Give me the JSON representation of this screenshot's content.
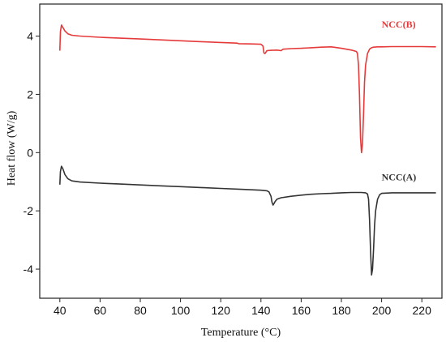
{
  "chart_data": {
    "type": "line",
    "title": "",
    "xlabel": "Temperature (°C)",
    "ylabel": "Heat flow (W/g)",
    "xlim": [
      30,
      230
    ],
    "ylim": [
      -5,
      5.1
    ],
    "xticks": [
      "40",
      "60",
      "80",
      "100",
      "120",
      "140",
      "160",
      "180",
      "200",
      "220"
    ],
    "yticks": [
      "4",
      "2",
      "0",
      "-2",
      "-4"
    ],
    "grid": false,
    "legend": "labels placed beside each curve",
    "series": [
      {
        "name": "NCC(B)",
        "color": "#e63a3a",
        "label_at": [
          200,
          4.3
        ],
        "x": [
          40,
          40.3,
          40.8,
          41.5,
          42.5,
          44,
          46,
          50,
          60,
          70,
          80,
          90,
          100,
          110,
          120,
          128,
          129,
          135,
          140,
          141,
          141.5,
          142,
          142.5,
          143,
          145,
          148,
          150,
          151,
          155,
          160,
          165,
          170,
          175,
          180,
          185,
          186,
          187,
          187.5,
          188,
          188.5,
          189,
          189.5,
          190,
          190.5,
          191,
          191.5,
          192,
          193,
          194,
          195,
          196,
          198,
          200,
          205,
          210,
          220,
          227
        ],
        "y": [
          3.5,
          4.15,
          4.38,
          4.3,
          4.18,
          4.08,
          4.03,
          4.0,
          3.96,
          3.93,
          3.9,
          3.87,
          3.84,
          3.81,
          3.78,
          3.76,
          3.74,
          3.73,
          3.72,
          3.66,
          3.42,
          3.4,
          3.45,
          3.5,
          3.51,
          3.52,
          3.5,
          3.55,
          3.57,
          3.58,
          3.6,
          3.62,
          3.63,
          3.58,
          3.52,
          3.5,
          3.48,
          3.47,
          3.4,
          3.0,
          2.0,
          0.5,
          0.0,
          0.3,
          1.3,
          2.4,
          3.0,
          3.4,
          3.55,
          3.6,
          3.62,
          3.63,
          3.63,
          3.64,
          3.64,
          3.64,
          3.63
        ]
      },
      {
        "name": "NCC(A)",
        "color": "#333333",
        "label_at": [
          200,
          -0.95
        ],
        "x": [
          40,
          40.3,
          40.8,
          41.5,
          42.5,
          44,
          46,
          50,
          60,
          70,
          80,
          90,
          100,
          110,
          120,
          130,
          140,
          143,
          144,
          145,
          145.5,
          146,
          146.5,
          147,
          148,
          150,
          155,
          160,
          165,
          170,
          175,
          180,
          185,
          190,
          192,
          193,
          193.5,
          194,
          194.5,
          195,
          195.5,
          196,
          196.5,
          197,
          198,
          199,
          200,
          205,
          210,
          220,
          227
        ],
        "y": [
          -1.1,
          -0.65,
          -0.47,
          -0.55,
          -0.75,
          -0.9,
          -0.97,
          -1.01,
          -1.05,
          -1.08,
          -1.11,
          -1.14,
          -1.17,
          -1.2,
          -1.23,
          -1.26,
          -1.29,
          -1.31,
          -1.35,
          -1.5,
          -1.7,
          -1.8,
          -1.75,
          -1.68,
          -1.6,
          -1.55,
          -1.5,
          -1.46,
          -1.43,
          -1.41,
          -1.4,
          -1.38,
          -1.37,
          -1.37,
          -1.38,
          -1.42,
          -1.6,
          -2.3,
          -3.4,
          -4.2,
          -4.0,
          -3.3,
          -2.5,
          -2.0,
          -1.6,
          -1.45,
          -1.4,
          -1.38,
          -1.38,
          -1.38,
          -1.38
        ]
      }
    ]
  }
}
